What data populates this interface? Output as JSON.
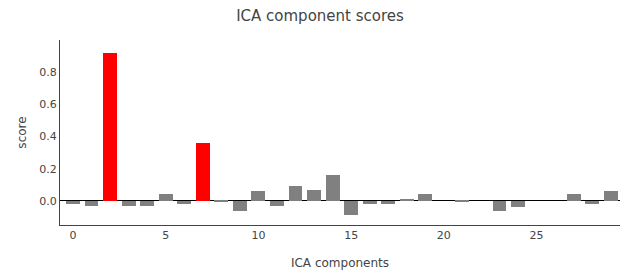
{
  "chart_data": {
    "type": "bar",
    "title": "ICA component scores",
    "xlabel": "ICA components",
    "ylabel": "score",
    "x": [
      0,
      1,
      2,
      3,
      4,
      5,
      6,
      7,
      8,
      9,
      10,
      11,
      12,
      13,
      14,
      15,
      16,
      17,
      18,
      19,
      20,
      21,
      22,
      23,
      24,
      25,
      26,
      27,
      28,
      29
    ],
    "values": [
      -0.02,
      -0.03,
      0.92,
      -0.03,
      -0.03,
      0.04,
      -0.02,
      0.36,
      -0.01,
      -0.06,
      0.06,
      -0.03,
      0.09,
      0.07,
      0.16,
      -0.09,
      -0.02,
      -0.02,
      0.01,
      0.04,
      0.0,
      -0.01,
      0.0,
      -0.06,
      -0.04,
      0.0,
      0.0,
      0.04,
      -0.02,
      0.06
    ],
    "colors": [
      "#808080",
      "#808080",
      "#ff0000",
      "#808080",
      "#808080",
      "#808080",
      "#808080",
      "#ff0000",
      "#808080",
      "#808080",
      "#808080",
      "#808080",
      "#808080",
      "#808080",
      "#808080",
      "#808080",
      "#808080",
      "#808080",
      "#808080",
      "#808080",
      "#808080",
      "#808080",
      "#808080",
      "#808080",
      "#808080",
      "#808080",
      "#808080",
      "#808080",
      "#808080",
      "#808080"
    ],
    "xlim": [
      -0.7,
      29.5
    ],
    "xticks": [
      0,
      5,
      10,
      15,
      20,
      25
    ],
    "ylim": [
      -0.15,
      1.0
    ],
    "yticks": [
      {
        "value": 0.0,
        "label": "0.0"
      },
      0.2,
      0.4,
      0.6,
      0.8
    ],
    "grid": false
  }
}
